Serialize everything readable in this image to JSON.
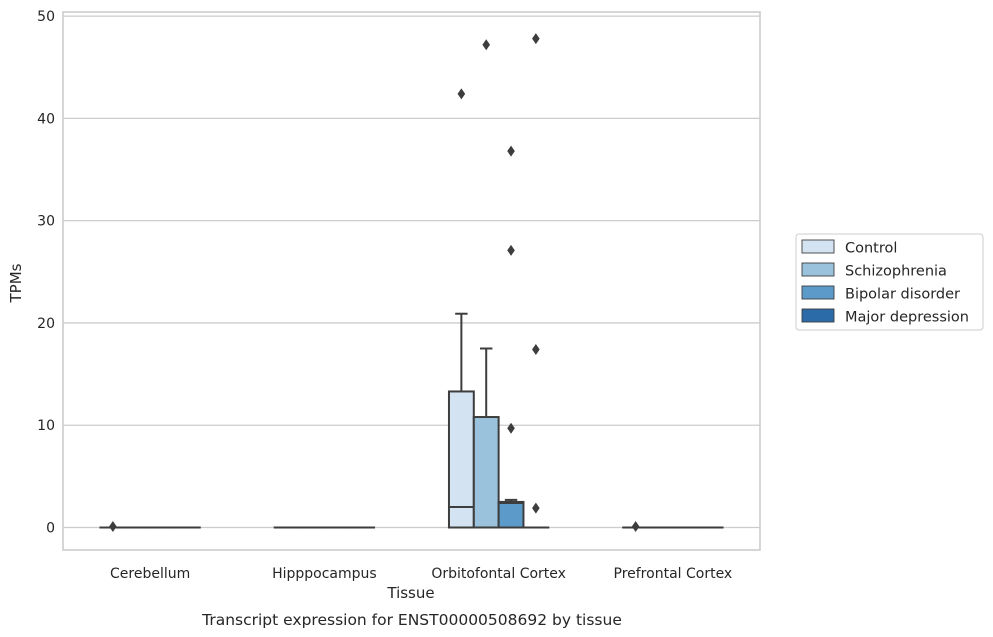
{
  "chart_data": {
    "type": "box",
    "title": "",
    "caption": "Transcript expression for ENST00000508692 by tissue",
    "xlabel": "Tissue",
    "ylabel": "TPMs",
    "ylim": [
      -2.2,
      50.4
    ],
    "yticks": [
      "0",
      "10",
      "20",
      "30",
      "40",
      "50"
    ],
    "grid": "horizontal",
    "legend_position": "outside-right",
    "categories": [
      "Cerebellum",
      "Hipppocampus",
      "Orbitofontal Cortex",
      "Prefrontal Cortex"
    ],
    "series": [
      {
        "name": "Control",
        "color": "#d4e3f2",
        "boxes": [
          {
            "min": 0,
            "q1": 0,
            "median": 0,
            "q3": 0,
            "max": 0,
            "outliers": [
              0.1
            ]
          },
          {
            "min": 0,
            "q1": 0,
            "median": 0,
            "q3": 0,
            "max": 0,
            "outliers": []
          },
          {
            "min": 0,
            "q1": 0,
            "median": 2.0,
            "q3": 13.3,
            "max": 20.9,
            "outliers": [
              42.4
            ]
          },
          {
            "min": 0,
            "q1": 0,
            "median": 0,
            "q3": 0,
            "max": 0,
            "outliers": [
              0.1
            ]
          }
        ]
      },
      {
        "name": "Schizophrenia",
        "color": "#9bc2dc",
        "boxes": [
          {
            "min": 0,
            "q1": 0,
            "median": 0,
            "q3": 0,
            "max": 0,
            "outliers": []
          },
          {
            "min": 0,
            "q1": 0,
            "median": 0,
            "q3": 0,
            "max": 0,
            "outliers": []
          },
          {
            "min": 0,
            "q1": 0,
            "median": 0,
            "q3": 10.8,
            "max": 17.5,
            "outliers": [
              47.2
            ]
          },
          {
            "min": 0,
            "q1": 0,
            "median": 0,
            "q3": 0,
            "max": 0,
            "outliers": []
          }
        ]
      },
      {
        "name": "Bipolar disorder",
        "color": "#5b9ac9",
        "boxes": [
          {
            "min": 0,
            "q1": 0,
            "median": 0,
            "q3": 0,
            "max": 0,
            "outliers": []
          },
          {
            "min": 0,
            "q1": 0,
            "median": 0,
            "q3": 0,
            "max": 0,
            "outliers": []
          },
          {
            "min": 0,
            "q1": 0,
            "median": 2.4,
            "q3": 2.5,
            "max": 2.7,
            "outliers": [
              36.8,
              27.1,
              9.7
            ]
          },
          {
            "min": 0,
            "q1": 0,
            "median": 0,
            "q3": 0,
            "max": 0,
            "outliers": []
          }
        ]
      },
      {
        "name": "Major depression",
        "color": "#2b6ca8",
        "boxes": [
          {
            "min": 0,
            "q1": 0,
            "median": 0,
            "q3": 0,
            "max": 0,
            "outliers": []
          },
          {
            "min": 0,
            "q1": 0,
            "median": 0,
            "q3": 0,
            "max": 0,
            "outliers": []
          },
          {
            "min": 0,
            "q1": 0,
            "median": 0,
            "q3": 0,
            "max": 0,
            "outliers": [
              47.8,
              17.4,
              1.9
            ]
          },
          {
            "min": 0,
            "q1": 0,
            "median": 0,
            "q3": 0,
            "max": 0,
            "outliers": []
          }
        ]
      }
    ]
  }
}
